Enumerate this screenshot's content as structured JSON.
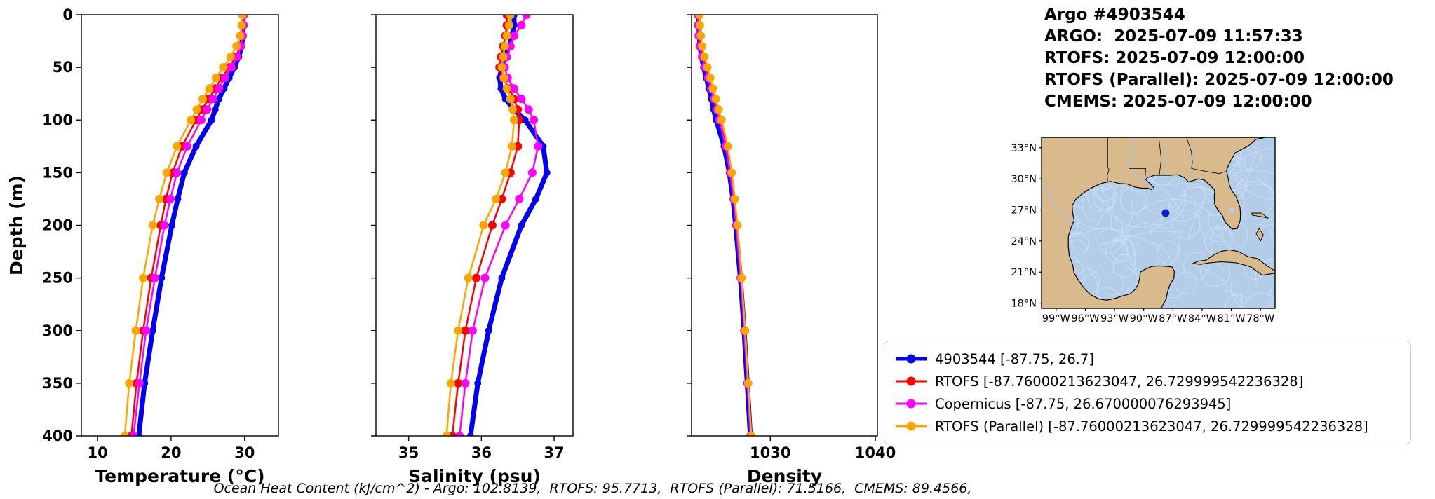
{
  "header": {
    "lines": [
      "Argo #4903544",
      "ARGO:  2025-07-09 11:57:33",
      "RTOFS: 2025-07-09 12:00:00",
      "RTOFS (Parallel): 2025-07-09 12:00:00",
      "CMEMS: 2025-07-09 12:00:00"
    ]
  },
  "chart_data": [
    {
      "type": "line",
      "title": "",
      "xlabel": "Temperature (°C)",
      "ylabel": "Depth (m)",
      "xlim": [
        7.8,
        34.6
      ],
      "ylim": [
        400,
        0
      ],
      "xticks": [
        10,
        20,
        30
      ],
      "yticks": [
        0,
        50,
        100,
        150,
        200,
        250,
        300,
        350,
        400
      ],
      "grid": false,
      "depths": [
        0,
        10,
        20,
        30,
        40,
        50,
        60,
        70,
        80,
        90,
        100,
        125,
        150,
        175,
        200,
        250,
        300,
        350,
        400
      ],
      "series": [
        {
          "name": "4903544",
          "color": "#0000ee",
          "lw": 7,
          "ms": 5,
          "values": [
            29.8,
            29.8,
            29.75,
            29.6,
            29.2,
            28.6,
            27.9,
            27.2,
            26.5,
            26.0,
            25.5,
            23.4,
            21.8,
            20.9,
            20.1,
            18.7,
            17.5,
            16.4,
            15.6
          ]
        },
        {
          "name": "RTOFS",
          "color": "#ff0000",
          "lw": 2.5,
          "ms": 6,
          "values": [
            29.9,
            29.85,
            29.7,
            29.4,
            28.8,
            27.9,
            26.9,
            26.0,
            25.1,
            24.2,
            23.4,
            21.5,
            20.2,
            19.3,
            18.6,
            17.3,
            16.2,
            15.3,
            14.6
          ]
        },
        {
          "name": "Copernicus",
          "color": "#ff00ff",
          "lw": 2.5,
          "ms": 6,
          "values": [
            29.9,
            29.85,
            29.75,
            29.5,
            29.0,
            28.2,
            27.3,
            26.5,
            25.7,
            24.9,
            24.1,
            22.2,
            20.8,
            19.9,
            19.1,
            17.8,
            16.6,
            15.7,
            14.9
          ]
        },
        {
          "name": "RTOFS (Parallel)",
          "color": "#ffa500",
          "lw": 2.5,
          "ms": 6,
          "values": [
            29.7,
            29.6,
            29.4,
            28.9,
            28.1,
            27.1,
            26.1,
            25.2,
            24.3,
            23.5,
            22.7,
            20.8,
            19.4,
            18.4,
            17.5,
            16.2,
            15.2,
            14.3,
            13.7
          ]
        }
      ]
    },
    {
      "type": "line",
      "title": "",
      "xlabel": "Salinity (psu)",
      "ylabel": "",
      "xlim": [
        34.55,
        37.26
      ],
      "ylim": [
        400,
        0
      ],
      "xticks": [
        35,
        36,
        37
      ],
      "yticks": [
        0,
        50,
        100,
        150,
        200,
        250,
        300,
        350,
        400
      ],
      "grid": false,
      "depths": [
        0,
        10,
        20,
        30,
        40,
        50,
        60,
        70,
        80,
        90,
        100,
        125,
        150,
        175,
        200,
        250,
        300,
        350,
        400
      ],
      "series": [
        {
          "name": "4903544",
          "color": "#0000ee",
          "lw": 7,
          "ms": 5,
          "values": [
            36.45,
            36.45,
            36.42,
            36.38,
            36.33,
            36.28,
            36.25,
            36.27,
            36.33,
            36.45,
            36.6,
            36.85,
            36.9,
            36.75,
            36.55,
            36.28,
            36.1,
            35.95,
            35.85
          ]
        },
        {
          "name": "RTOFS",
          "color": "#ff0000",
          "lw": 2.5,
          "ms": 6,
          "values": [
            36.35,
            36.35,
            36.33,
            36.3,
            36.27,
            36.25,
            36.3,
            36.38,
            36.45,
            36.5,
            36.52,
            36.5,
            36.4,
            36.28,
            36.15,
            35.93,
            35.78,
            35.68,
            35.6
          ]
        },
        {
          "name": "Copernicus",
          "color": "#ff00ff",
          "lw": 2.5,
          "ms": 6,
          "values": [
            36.62,
            36.55,
            36.45,
            36.4,
            36.35,
            36.32,
            36.36,
            36.45,
            36.55,
            36.65,
            36.72,
            36.78,
            36.7,
            36.52,
            36.33,
            36.05,
            35.88,
            35.78,
            35.7
          ]
        },
        {
          "name": "RTOFS (Parallel)",
          "color": "#ffa500",
          "lw": 2.5,
          "ms": 6,
          "values": [
            36.4,
            36.38,
            36.35,
            36.32,
            36.3,
            36.28,
            36.31,
            36.35,
            36.4,
            36.43,
            36.45,
            36.42,
            36.33,
            36.2,
            36.03,
            35.82,
            35.68,
            35.58,
            35.52
          ]
        }
      ]
    },
    {
      "type": "line",
      "title": "",
      "xlabel": "Density",
      "ylabel": "",
      "xlim": [
        1022.5,
        1040.2
      ],
      "ylim": [
        400,
        0
      ],
      "xticks": [
        1030,
        1040
      ],
      "yticks": [
        0,
        50,
        100,
        150,
        200,
        250,
        300,
        350,
        400
      ],
      "grid": false,
      "depths": [
        0,
        10,
        20,
        30,
        40,
        50,
        60,
        70,
        80,
        90,
        100,
        125,
        150,
        175,
        200,
        250,
        300,
        350,
        400
      ],
      "series": [
        {
          "name": "4903544",
          "color": "#0000ee",
          "lw": 7,
          "ms": 5,
          "values": [
            1023.2,
            1023.2,
            1023.25,
            1023.3,
            1023.45,
            1023.65,
            1023.9,
            1024.15,
            1024.4,
            1024.6,
            1024.85,
            1025.6,
            1026.1,
            1026.45,
            1026.7,
            1027.15,
            1027.5,
            1027.8,
            1028.1
          ]
        },
        {
          "name": "RTOFS",
          "color": "#ff0000",
          "lw": 2.5,
          "ms": 6,
          "values": [
            1023.15,
            1023.17,
            1023.22,
            1023.32,
            1023.55,
            1023.85,
            1024.15,
            1024.45,
            1024.75,
            1025.0,
            1025.25,
            1025.85,
            1026.25,
            1026.55,
            1026.8,
            1027.2,
            1027.55,
            1027.85,
            1028.15
          ]
        },
        {
          "name": "Copernicus",
          "color": "#ff00ff",
          "lw": 2.5,
          "ms": 6,
          "values": [
            1023.1,
            1023.13,
            1023.18,
            1023.28,
            1023.5,
            1023.78,
            1024.08,
            1024.38,
            1024.65,
            1024.9,
            1025.15,
            1025.75,
            1026.18,
            1026.5,
            1026.75,
            1027.18,
            1027.52,
            1027.82,
            1028.12
          ]
        },
        {
          "name": "RTOFS (Parallel)",
          "color": "#ffa500",
          "lw": 2.5,
          "ms": 6,
          "values": [
            1023.25,
            1023.3,
            1023.38,
            1023.5,
            1023.73,
            1024.0,
            1024.28,
            1024.55,
            1024.82,
            1025.08,
            1025.35,
            1025.95,
            1026.33,
            1026.62,
            1026.87,
            1027.27,
            1027.6,
            1027.9,
            1028.2
          ]
        }
      ]
    }
  ],
  "map": {
    "lon_ticks": [
      -99,
      -96,
      -93,
      -90,
      -87,
      -84,
      -81,
      -78
    ],
    "lon_tick_labels": [
      "99°W",
      "96°W",
      "93°W",
      "90°W",
      "87°W",
      "84°W",
      "81°W",
      "78°W"
    ],
    "lat_ticks": [
      18,
      21,
      24,
      27,
      30,
      33
    ],
    "lat_tick_labels": [
      "18°N",
      "21°N",
      "24°N",
      "27°N",
      "30°N",
      "33°N"
    ],
    "float": {
      "lon": -87.75,
      "lat": 26.7
    },
    "colors": {
      "land": "#d9ba8c",
      "water": "#b3cce8",
      "streamline": "#cbdef2",
      "coast": "#000000",
      "river": "#9fc2e4",
      "dot": "#0022cc"
    }
  },
  "legend": {
    "entries": [
      {
        "label": "4903544 [-87.75, 26.7]",
        "color": "#0000ee",
        "lw": 5,
        "ms": 6.5
      },
      {
        "label": "RTOFS [-87.76000213623047, 26.729999542236328]",
        "color": "#ff0000",
        "lw": 3,
        "ms": 6.5
      },
      {
        "label": "Copernicus [-87.75, 26.670000076293945]",
        "color": "#ff00ff",
        "lw": 3,
        "ms": 6.5
      },
      {
        "label": "RTOFS (Parallel) [-87.76000213623047, 26.729999542236328]",
        "color": "#ffa500",
        "lw": 3,
        "ms": 6.5
      }
    ]
  },
  "footer": {
    "text": "Ocean Heat Content (kJ/cm^2) - Argo: 102.8139,  RTOFS: 95.7713,  RTOFS (Parallel): 71.5166,  CMEMS: 89.4566,"
  }
}
